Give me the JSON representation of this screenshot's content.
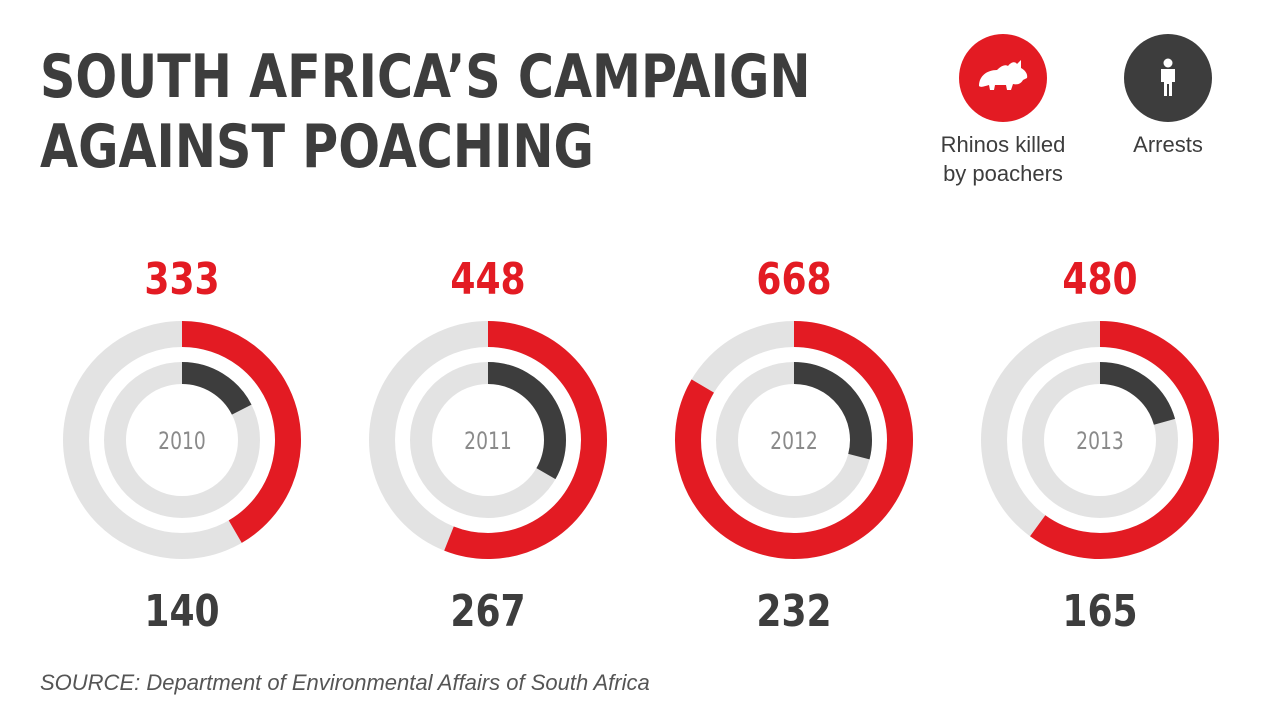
{
  "title_lines": [
    "SOUTH AFRICA’S CAMPAIGN",
    "AGAINST POACHING"
  ],
  "legend": {
    "rhinos": {
      "label": "Rhinos killed\nby poachers",
      "color": "#e31b23",
      "icon": "rhino-icon"
    },
    "arrests": {
      "label": "Arrests",
      "color": "#3d3d3d",
      "icon": "person-icon"
    }
  },
  "colors": {
    "track": "#e3e3e3",
    "rhinos": "#e31b23",
    "arrests": "#3d3d3d",
    "year_text": "#8a8a8a",
    "arrest_text": "#3d3d3d"
  },
  "chart_data": {
    "type": "radial-bar",
    "categories": [
      "2010",
      "2011",
      "2012",
      "2013"
    ],
    "series": [
      {
        "name": "Rhinos killed by poachers",
        "values": [
          333,
          448,
          668,
          480
        ]
      },
      {
        "name": "Arrests",
        "values": [
          140,
          267,
          232,
          165
        ]
      }
    ],
    "scale_max": 800
  },
  "source": "SOURCE: Department of Environmental Affairs of South Africa"
}
